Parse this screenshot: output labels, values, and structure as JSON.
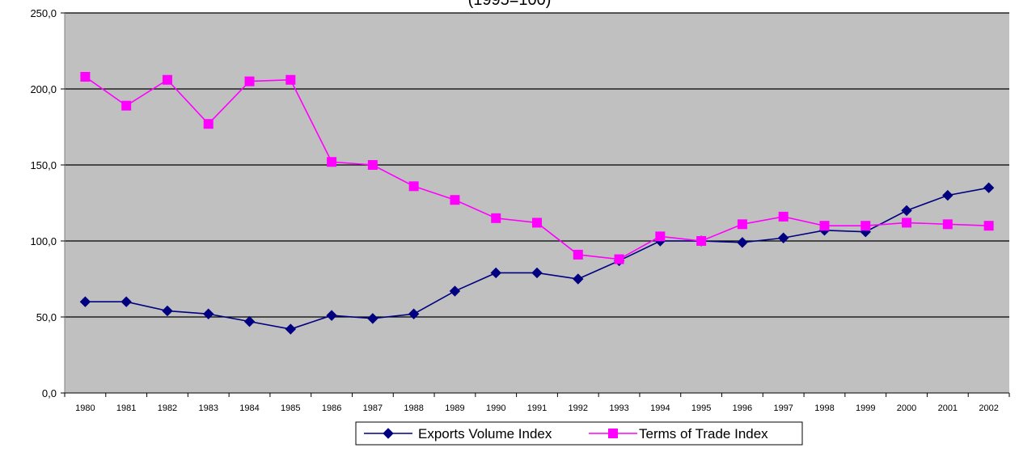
{
  "chart_data": {
    "type": "line",
    "title": "(1995=100)",
    "xlabel": "",
    "ylabel": "",
    "ylim": [
      0,
      250
    ],
    "y_ticks": [
      "0,0",
      "50,0",
      "100,0",
      "150,0",
      "200,0",
      "250,0"
    ],
    "y_tick_values": [
      0,
      50,
      100,
      150,
      200,
      250
    ],
    "grid": true,
    "legend_position": "bottom",
    "plot_background": "#c0c0c0",
    "categories": [
      "1980",
      "1981",
      "1982",
      "1983",
      "1984",
      "1985",
      "1986",
      "1987",
      "1988",
      "1989",
      "1990",
      "1991",
      "1992",
      "1993",
      "1994",
      "1995",
      "1996",
      "1997",
      "1998",
      "1999",
      "2000",
      "2001",
      "2002"
    ],
    "series": [
      {
        "name": "Exports Volume Index",
        "color": "#000080",
        "marker": "diamond",
        "values": [
          60,
          60,
          54,
          52,
          47,
          42,
          51,
          49,
          52,
          67,
          79,
          79,
          75,
          87,
          100,
          100,
          99,
          102,
          107,
          106,
          120,
          130,
          135
        ]
      },
      {
        "name": "Terms of Trade Index",
        "color": "#ff00ff",
        "marker": "square",
        "values": [
          208,
          189,
          206,
          177,
          205,
          206,
          152,
          150,
          136,
          127,
          115,
          112,
          91,
          88,
          103,
          100,
          111,
          116,
          110,
          110,
          112,
          111,
          110
        ]
      }
    ]
  }
}
